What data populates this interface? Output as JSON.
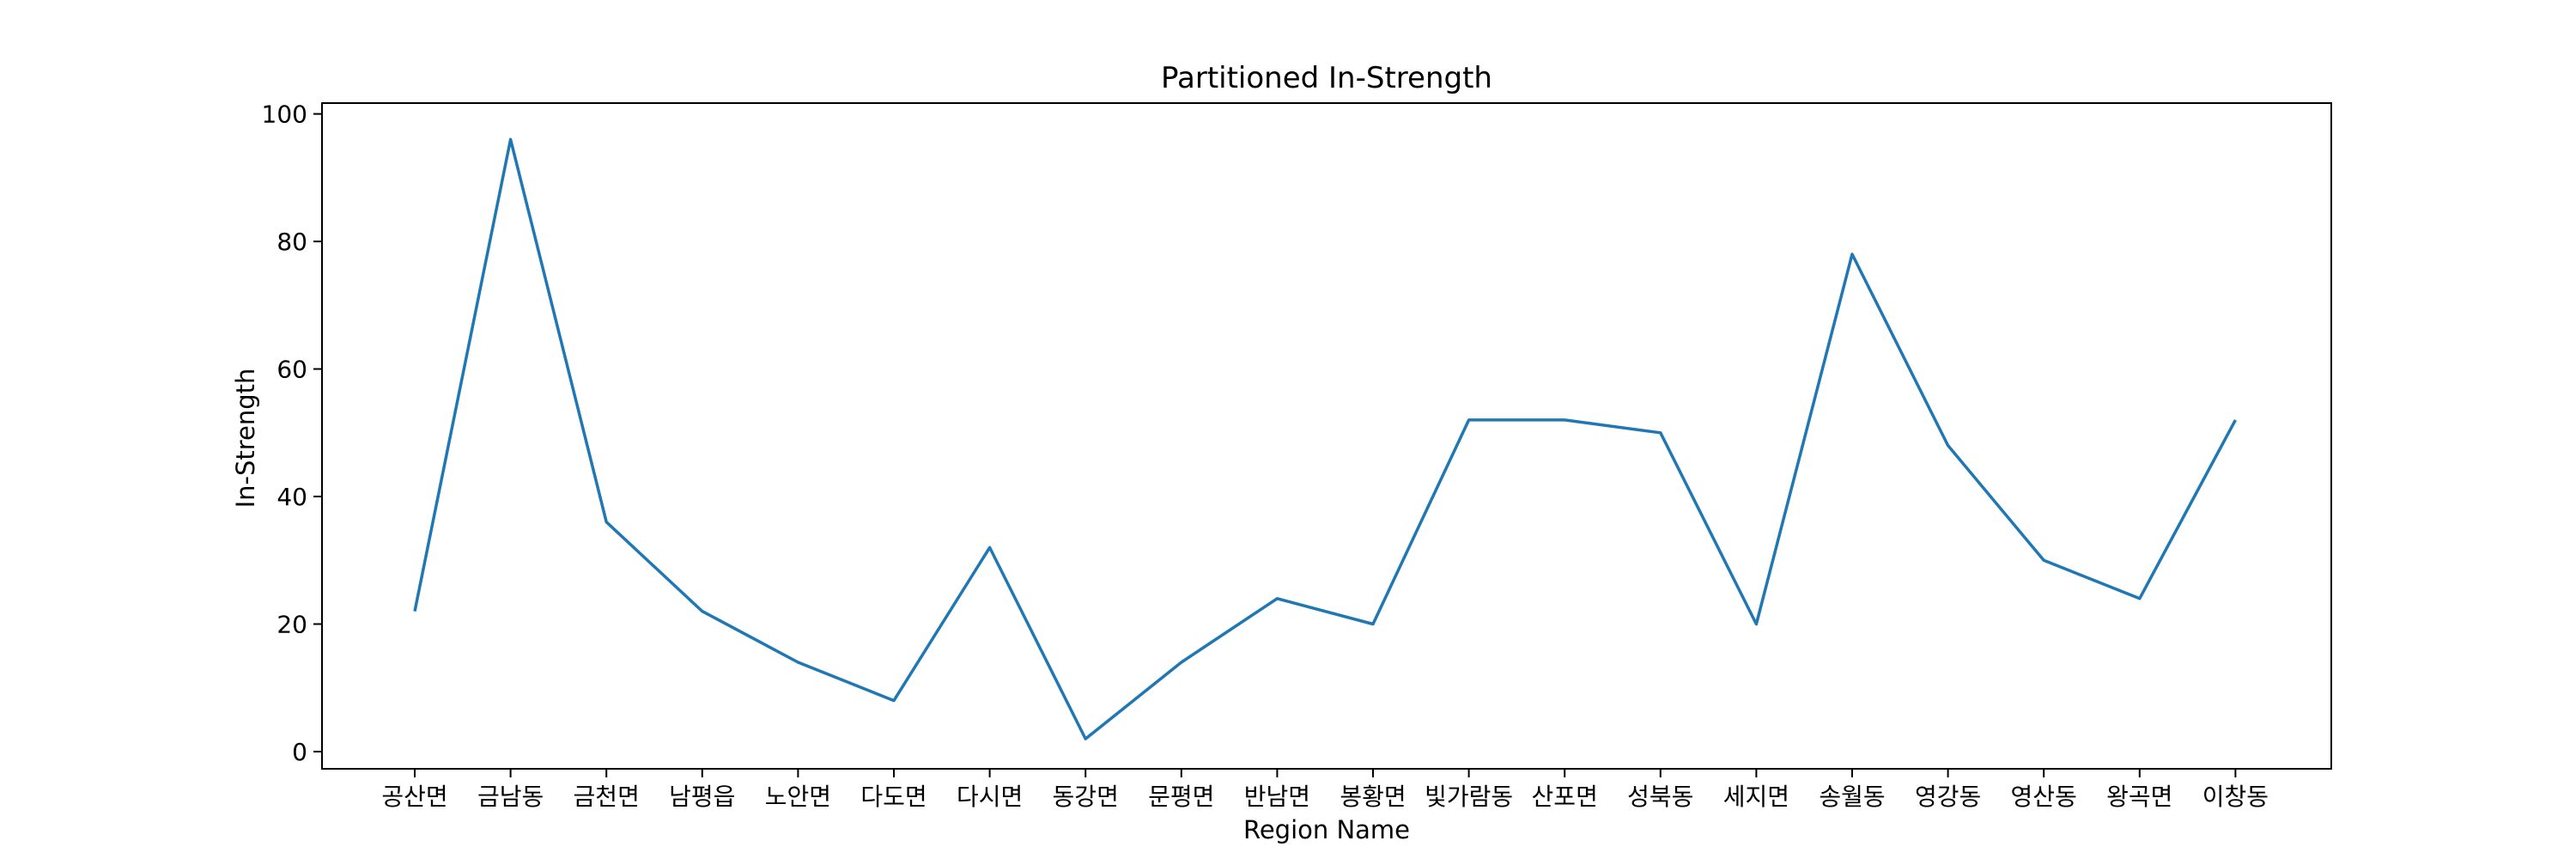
{
  "chart_data": {
    "type": "line",
    "title": "Partitioned In-Strength",
    "xlabel": "Region Name",
    "ylabel": "In-Strength",
    "categories": [
      "공산면",
      "금남동",
      "금천면",
      "남평읍",
      "노안면",
      "다도면",
      "다시면",
      "동강면",
      "문평면",
      "반남면",
      "봉황면",
      "빛가람동",
      "산포면",
      "성북동",
      "세지면",
      "송월동",
      "영강동",
      "영산동",
      "왕곡면",
      "이창동"
    ],
    "series": [
      {
        "values": [
          22,
          96,
          36,
          22,
          14,
          8,
          32,
          2,
          14,
          24,
          20,
          52,
          52,
          50,
          20,
          78,
          48,
          30,
          24,
          52
        ],
        "color": "#1f77b4"
      }
    ],
    "ylim": [
      -2.7,
      101.7
    ],
    "yticks": [
      0,
      20,
      40,
      60,
      80,
      100
    ],
    "grid": false,
    "legend": "none"
  }
}
